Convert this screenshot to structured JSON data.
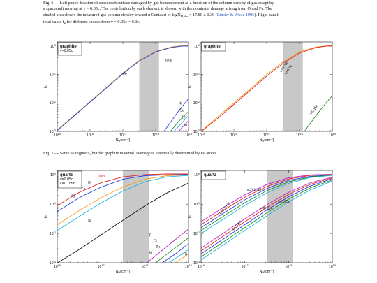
{
  "fig6": {
    "caption_prefix": "Fig. 6.—",
    "caption_text_1": " Left panel: fraction of spacecraft surface damaged by gas bombardment as a function of the column density of gas swept by",
    "caption_text_2": "a spacecraft moving at v = 0.05c. The contribution by each element is shown, with the dominant damage arising from O and Fe. The",
    "caption_text_3a": "shaded area shows the measured gas column density toward α Centauri of logN",
    "caption_text_3b": "H,obs",
    "caption_text_3c": " = 17.80 ± 0.30 (",
    "caption_cite": "Linsky & Wood 1996",
    "caption_text_3d": "). Right panel:",
    "caption_text_4": "total value f",
    "caption_text_4b": "S",
    "caption_text_4c": " for different speeds from v = 0.05c − 0.3c."
  },
  "fig7": {
    "caption_prefix": "Fig. 7.—",
    "caption_text_a": " Same as Figure ",
    "caption_ref": "6",
    "caption_text_b": ", but for graphite material. Damage is essentially determined by Fe atoms."
  },
  "colors": {
    "shade": "#c8c8c8",
    "orange": "#f0a020",
    "red": "#e02020",
    "green": "#2a8a2a",
    "cyan": "#20b8d8",
    "blue": "#2040e0",
    "magenta": "#c020c0",
    "black": "#111111",
    "link": "#2b55b8"
  },
  "chart_data": [
    {
      "type": "line",
      "panel": "top-left",
      "material": "graphite",
      "speed_label": "v=0.05c",
      "xlabel": "N_H(cm^-2)",
      "ylabel": "f_S",
      "xlim_log10": [
        15,
        19
      ],
      "ylim_log10": [
        -3,
        0.15
      ],
      "x_ticks": [
        "10^15",
        "10^16",
        "10^17",
        "10^18",
        "10^19"
      ],
      "y_ticks": [
        "10^-3",
        "10^-2",
        "10^-1",
        "10^0"
      ],
      "shaded_range_log10": [
        17.5,
        18.1
      ],
      "annotations": [
        "total",
        "Fe",
        "Ni",
        "Cu",
        "Zn",
        "Mn"
      ],
      "series": [
        {
          "name": "total",
          "color": "#f0a020",
          "log_x": [
            15.0,
            15.5,
            16.0,
            16.5,
            17.0,
            17.5,
            18.0,
            18.5,
            18.8,
            19.0
          ],
          "log_y": [
            -2.95,
            -2.45,
            -1.95,
            -1.45,
            -0.95,
            -0.5,
            -0.18,
            -0.02,
            0.02,
            0.03
          ]
        },
        {
          "name": "Fe",
          "color": "#2040e0",
          "log_x": [
            15.0,
            15.5,
            16.0,
            16.5,
            17.0,
            17.5,
            18.0,
            18.5,
            18.8,
            19.0
          ],
          "log_y": [
            -2.97,
            -2.47,
            -1.97,
            -1.47,
            -0.97,
            -0.52,
            -0.2,
            -0.04,
            0.0,
            0.01
          ]
        },
        {
          "name": "Ni",
          "color": "#2040e0",
          "log_x": [
            18.25,
            18.5,
            18.75,
            19.0
          ],
          "log_y": [
            -3.0,
            -2.6,
            -2.2,
            -1.85
          ]
        },
        {
          "name": "Cu",
          "color": "#2a8a2a",
          "log_x": [
            18.45,
            18.7,
            19.0
          ],
          "log_y": [
            -3.0,
            -2.65,
            -2.3
          ]
        },
        {
          "name": "Zn",
          "color": "#20b8d8",
          "log_x": [
            18.55,
            18.8,
            19.0
          ],
          "log_y": [
            -3.0,
            -2.7,
            -2.45
          ]
        },
        {
          "name": "Mn",
          "color": "#c020c0",
          "log_x": [
            18.7,
            18.85,
            19.0
          ],
          "log_y": [
            -3.0,
            -2.8,
            -2.62
          ]
        }
      ]
    },
    {
      "type": "line",
      "panel": "top-right",
      "material": "graphite",
      "xlabel": "N_H(cm^-2)",
      "ylabel": "f_S",
      "xlim_log10": [
        15,
        19
      ],
      "ylim_log10": [
        -3,
        0.15
      ],
      "x_ticks": [
        "10^15",
        "10^16",
        "10^17",
        "10^18",
        "10^19"
      ],
      "y_ticks": [
        "10^-3",
        "10^-2",
        "10^-1",
        "10^0"
      ],
      "shaded_range_log10": [
        17.5,
        18.1
      ],
      "annotations": [
        "v=0.05c",
        "v=0.1c",
        "v=0.15c"
      ],
      "series": [
        {
          "name": "v=0.05c",
          "color": "#f0a020",
          "log_x": [
            15.0,
            15.5,
            16.0,
            16.5,
            17.0,
            17.5,
            18.0,
            18.5,
            18.8,
            19.0
          ],
          "log_y": [
            -3.0,
            -2.5,
            -2.0,
            -1.5,
            -1.0,
            -0.55,
            -0.2,
            -0.03,
            0.01,
            0.02
          ]
        },
        {
          "name": "v=0.1c",
          "color": "#e02020",
          "log_x": [
            15.0,
            15.5,
            16.0,
            16.5,
            17.0,
            17.5,
            18.0,
            18.5,
            18.8,
            19.0
          ],
          "log_y": [
            -3.05,
            -2.55,
            -2.05,
            -1.55,
            -1.05,
            -0.6,
            -0.24,
            -0.05,
            0.0,
            0.01
          ]
        },
        {
          "name": "v=0.15c",
          "color": "#2a8a2a",
          "log_x": [
            18.15,
            18.5,
            18.8,
            19.0
          ],
          "log_y": [
            -3.0,
            -2.45,
            -2.0,
            -1.75
          ]
        }
      ]
    },
    {
      "type": "line",
      "panel": "bottom-left",
      "material": "quartz",
      "speed_label": "v=0.05c",
      "thickness_label": "L=0.1mm",
      "xlabel": "N_H(cm^-2)",
      "ylabel": "f_S",
      "xlim_log10": [
        16,
        19
      ],
      "ylim_log10": [
        -3,
        0.15
      ],
      "x_ticks": [
        "10^16",
        "10^17",
        "10^18",
        "10^19"
      ],
      "y_ticks": [
        "10^-3",
        "10^-2",
        "10^-1",
        "10^0"
      ],
      "shaded_range_log10": [
        17.5,
        18.1
      ],
      "annotations": [
        "total",
        "O",
        "Fe",
        "Mg",
        "Si",
        "P",
        "Cl",
        "Zn",
        "Ni",
        "Ti"
      ],
      "series": [
        {
          "name": "total",
          "color": "#e02020",
          "log_x": [
            16.0,
            16.5,
            17.0,
            17.5,
            18.0,
            18.5,
            19.0
          ],
          "log_y": [
            -1.05,
            -0.6,
            -0.27,
            -0.07,
            0.01,
            0.03,
            0.03
          ]
        },
        {
          "name": "O",
          "color": "#2040e0",
          "log_x": [
            16.0,
            16.5,
            17.0,
            17.5,
            18.0,
            18.5,
            19.0
          ],
          "log_y": [
            -1.25,
            -0.78,
            -0.42,
            -0.15,
            -0.03,
            0.0,
            0.01
          ]
        },
        {
          "name": "Fe",
          "color": "#f0a020",
          "log_x": [
            16.0,
            16.5,
            17.0,
            17.5,
            18.0,
            18.5,
            19.0
          ],
          "log_y": [
            -1.7,
            -1.22,
            -0.78,
            -0.42,
            -0.15,
            -0.03,
            0.0
          ]
        },
        {
          "name": "Mg",
          "color": "#20b8d8",
          "log_x": [
            16.0,
            16.5,
            17.0,
            17.5,
            18.0,
            18.5,
            19.0
          ],
          "log_y": [
            -1.9,
            -1.42,
            -0.96,
            -0.55,
            -0.24,
            -0.07,
            -0.02
          ]
        },
        {
          "name": "Si",
          "color": "#111111",
          "log_x": [
            16.0,
            16.5,
            17.0,
            17.5,
            18.0,
            18.5,
            19.0
          ],
          "log_y": [
            -3.05,
            -2.55,
            -2.05,
            -1.55,
            -1.06,
            -0.62,
            -0.28
          ]
        },
        {
          "name": "P",
          "color": "#c020c0",
          "log_x": [
            18.05,
            18.5,
            19.0
          ],
          "log_y": [
            -3.0,
            -2.45,
            -1.85
          ]
        },
        {
          "name": "Cl",
          "color": "#2a8a2a",
          "log_x": [
            18.25,
            18.6,
            19.0
          ],
          "log_y": [
            -3.0,
            -2.6,
            -2.15
          ]
        },
        {
          "name": "Zn",
          "color": "#2040e0",
          "log_x": [
            18.4,
            18.7,
            19.0
          ],
          "log_y": [
            -3.0,
            -2.7,
            -2.35
          ]
        },
        {
          "name": "Ni",
          "color": "#20b8d8",
          "log_x": [
            18.55,
            18.8,
            19.0
          ],
          "log_y": [
            -3.0,
            -2.75,
            -2.55
          ]
        },
        {
          "name": "Ti",
          "color": "#f0a020",
          "log_x": [
            18.7,
            18.85,
            19.0
          ],
          "log_y": [
            -3.0,
            -2.85,
            -2.7
          ]
        }
      ]
    },
    {
      "type": "line",
      "panel": "bottom-right",
      "material": "quartz",
      "xlabel": "N_H(cm^-2)",
      "ylabel": "f_S",
      "xlim_log10": [
        16,
        19
      ],
      "ylim_log10": [
        -3,
        0.15
      ],
      "x_ticks": [
        "10^16",
        "10^17",
        "10^18",
        "10^19"
      ],
      "y_ticks": [
        "10^-3",
        "10^-2",
        "10^-1",
        "10^0"
      ],
      "shaded_range_log10": [
        17.5,
        18.1
      ],
      "annotations": [
        "v=0.1-0.2c",
        "v=0.05c",
        "v=0.25c",
        "L=0.1mm",
        "L=1mm"
      ],
      "series": [
        {
          "name": "L=0.1mm, v=0.05c",
          "color": "#c020c0",
          "log_x": [
            16.0,
            16.5,
            17.0,
            17.5,
            18.0,
            18.5,
            19.0
          ],
          "log_y": [
            -1.6,
            -1.12,
            -0.68,
            -0.33,
            -0.1,
            0.0,
            0.02
          ]
        },
        {
          "name": "L=0.1mm, v=0.1c",
          "color": "#e02020",
          "log_x": [
            16.0,
            16.5,
            17.0,
            17.5,
            18.0,
            18.5,
            19.0
          ],
          "log_y": [
            -1.7,
            -1.22,
            -0.76,
            -0.4,
            -0.14,
            -0.02,
            0.01
          ]
        },
        {
          "name": "L=0.1mm, v=0.15c",
          "color": "#2040e0",
          "log_x": [
            16.0,
            16.5,
            17.0,
            17.5,
            18.0,
            18.5,
            19.0
          ],
          "log_y": [
            -1.8,
            -1.32,
            -0.85,
            -0.47,
            -0.19,
            -0.05,
            0.0
          ]
        },
        {
          "name": "L=0.1mm, v=0.2c",
          "color": "#2a8a2a",
          "log_x": [
            16.0,
            16.5,
            17.0,
            17.5,
            18.0,
            18.5,
            19.0
          ],
          "log_y": [
            -1.9,
            -1.42,
            -0.95,
            -0.54,
            -0.24,
            -0.07,
            -0.01
          ]
        },
        {
          "name": "L=0.1mm, v=0.25c",
          "color": "#20b8d8",
          "log_x": [
            16.0,
            16.5,
            17.0,
            17.5,
            18.0,
            18.5,
            19.0
          ],
          "log_y": [
            -2.0,
            -1.52,
            -1.04,
            -0.62,
            -0.29,
            -0.09,
            -0.02
          ]
        },
        {
          "name": "L=1mm, v=0.05c",
          "color": "#c020c0",
          "log_x": [
            16.0,
            16.5,
            17.0,
            17.5,
            18.0,
            18.5,
            19.0
          ],
          "log_y": [
            -2.5,
            -2.0,
            -1.5,
            -1.02,
            -0.6,
            -0.27,
            -0.08
          ]
        },
        {
          "name": "L=1mm, v=0.1c",
          "color": "#e02020",
          "log_x": [
            16.0,
            16.5,
            17.0,
            17.5,
            18.0,
            18.5,
            19.0
          ],
          "log_y": [
            -2.6,
            -2.1,
            -1.6,
            -1.11,
            -0.67,
            -0.32,
            -0.1
          ]
        },
        {
          "name": "L=1mm, v=0.15c",
          "color": "#2040e0",
          "log_x": [
            16.0,
            16.5,
            17.0,
            17.5,
            18.0,
            18.5,
            19.0
          ],
          "log_y": [
            -2.7,
            -2.2,
            -1.7,
            -1.2,
            -0.75,
            -0.38,
            -0.13
          ]
        },
        {
          "name": "L=1mm, v=0.2c",
          "color": "#2a8a2a",
          "log_x": [
            16.0,
            16.5,
            17.0,
            17.5,
            18.0,
            18.5,
            19.0
          ],
          "log_y": [
            -2.8,
            -2.3,
            -1.8,
            -1.3,
            -0.83,
            -0.44,
            -0.17
          ]
        },
        {
          "name": "L=1mm, v=0.25c",
          "color": "#20b8d8",
          "log_x": [
            16.0,
            16.5,
            17.0,
            17.5,
            18.0,
            18.5,
            19.0
          ],
          "log_y": [
            -2.9,
            -2.4,
            -1.9,
            -1.4,
            -0.92,
            -0.51,
            -0.21
          ]
        }
      ]
    }
  ]
}
